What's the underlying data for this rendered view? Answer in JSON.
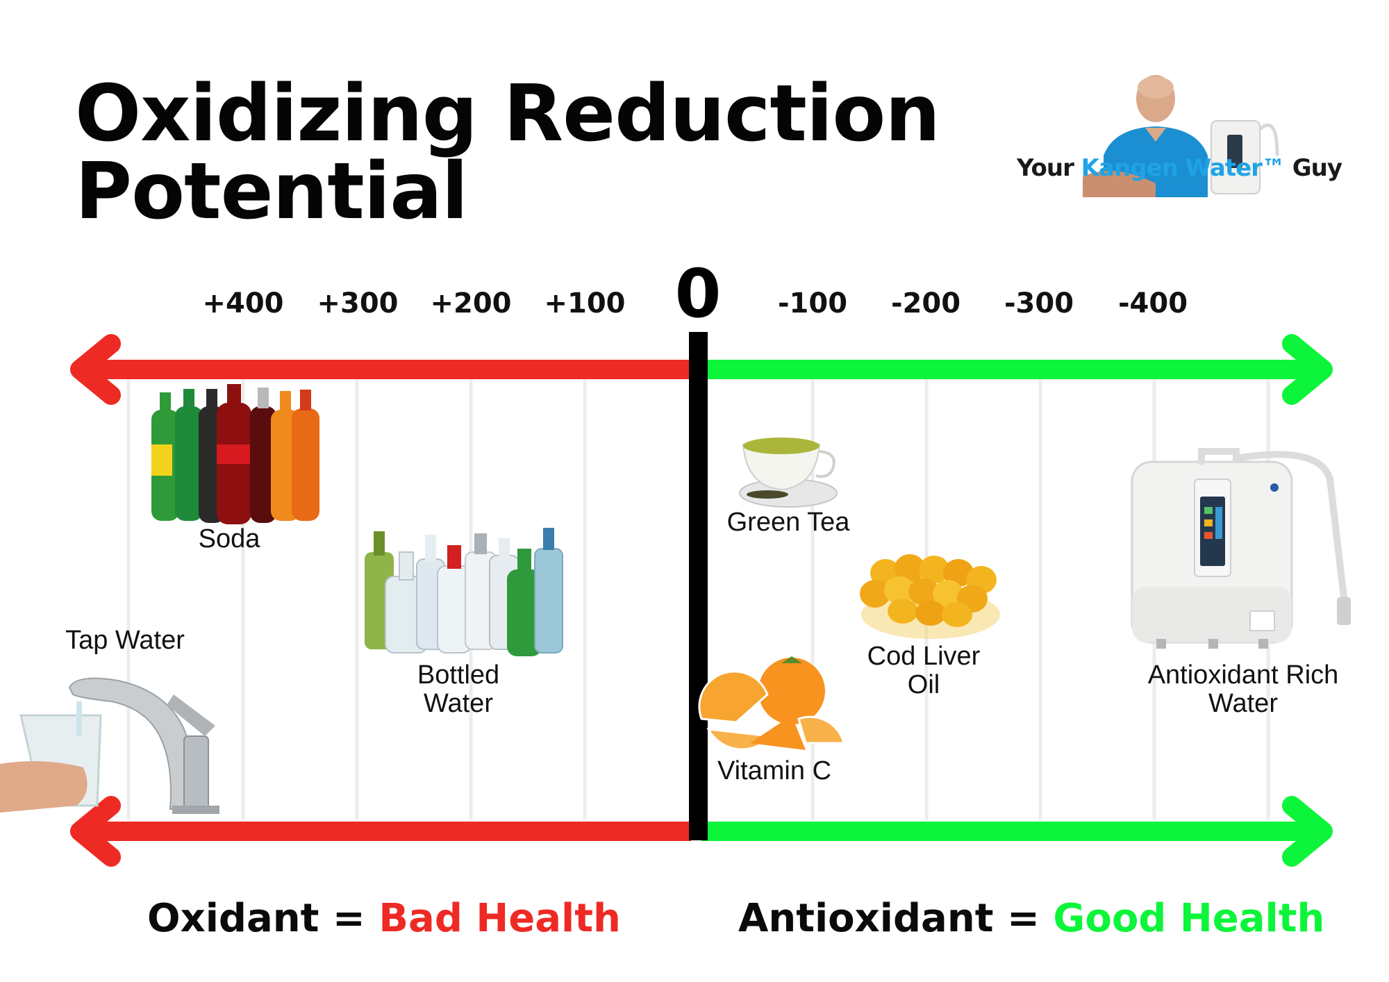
{
  "title": {
    "line1": "Oxidizing Reduction",
    "line2": "Potential"
  },
  "brand": {
    "prefix": "Your ",
    "name": "Kangen Water™",
    "suffix": " Guy"
  },
  "scale": {
    "zero": "0",
    "positive_ticks": [
      "+400",
      "+300",
      "+200",
      "+100"
    ],
    "negative_ticks": [
      "-100",
      "-200",
      "-300",
      "-400"
    ]
  },
  "items": {
    "tap_water": {
      "label": "Tap Water"
    },
    "soda": {
      "label": "Soda"
    },
    "bottled_water": {
      "line1": "Bottled",
      "line2": "Water"
    },
    "green_tea": {
      "label": "Green Tea"
    },
    "cod_liver_oil": {
      "line1": "Cod Liver",
      "line2": "Oil"
    },
    "vitamin_c": {
      "label": "Vitamin C"
    },
    "antioxidant_water": {
      "line1": "Antioxidant Rich",
      "line2": "Water"
    }
  },
  "footer": {
    "left_term": "Oxidant = ",
    "left_value": "Bad Health",
    "right_term": "Antioxidant = ",
    "right_value": "Good Health"
  },
  "colors": {
    "oxidant": "#ee2a24",
    "antioxidant": "#0cf53a",
    "axis": "#000000",
    "gridline": "#ececec"
  }
}
